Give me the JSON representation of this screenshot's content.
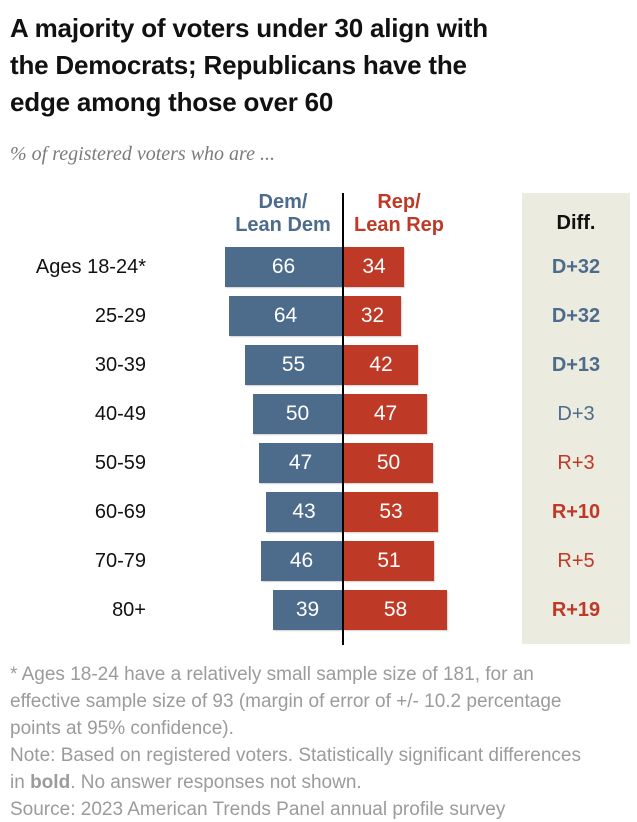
{
  "chart_data": {
    "type": "bar",
    "variant": "diverging-horizontal",
    "title": "A majority of voters under 30 align with the Democrats; Republicans have the edge among those over 60",
    "subtitle": "% of registered voters who are ...",
    "categories": [
      "Ages 18-24*",
      "25-29",
      "30-39",
      "40-49",
      "50-59",
      "60-69",
      "70-79",
      "80+"
    ],
    "series": [
      {
        "name": "Dem/\nLean Dem",
        "color": "#4d6c8c",
        "values": [
          66,
          64,
          55,
          50,
          47,
          43,
          46,
          39
        ]
      },
      {
        "name": "Rep/\nLean Rep",
        "color": "#bf3927",
        "values": [
          34,
          32,
          42,
          47,
          50,
          53,
          51,
          58
        ]
      }
    ],
    "diff_column": {
      "header": "Diff.",
      "background": "#ecebdf",
      "entries": [
        {
          "label": "D+32",
          "party": "dem",
          "bold": true
        },
        {
          "label": "D+32",
          "party": "dem",
          "bold": true
        },
        {
          "label": "D+13",
          "party": "dem",
          "bold": true
        },
        {
          "label": "D+3",
          "party": "dem",
          "bold": false
        },
        {
          "label": "R+3",
          "party": "rep",
          "bold": false
        },
        {
          "label": "R+10",
          "party": "rep",
          "bold": true
        },
        {
          "label": "R+5",
          "party": "rep",
          "bold": false
        },
        {
          "label": "R+19",
          "party": "rep",
          "bold": true
        }
      ]
    },
    "xlim": [
      0,
      100
    ],
    "center_axis": true,
    "value_labels": "inside-white",
    "legend_position": "column-headers"
  },
  "colors": {
    "dem": "#4d6c8c",
    "rep": "#bf3927",
    "diff_bg": "#ecebdf",
    "footer_gray": "#9b9b9b",
    "title_black": "#111111"
  },
  "footer": {
    "footnote": "* Ages 18-24 have a relatively small sample size of 181, for an effective sample size of 93 (margin of error of +/- 10.2 percentage points at 95% confidence).",
    "note_prefix": "Note: Based on registered voters. Statistically significant differences in ",
    "note_bold": "bold",
    "note_suffix": ". No answer responses not shown.",
    "source": "Source: 2023 American Trends Panel annual profile survey"
  }
}
